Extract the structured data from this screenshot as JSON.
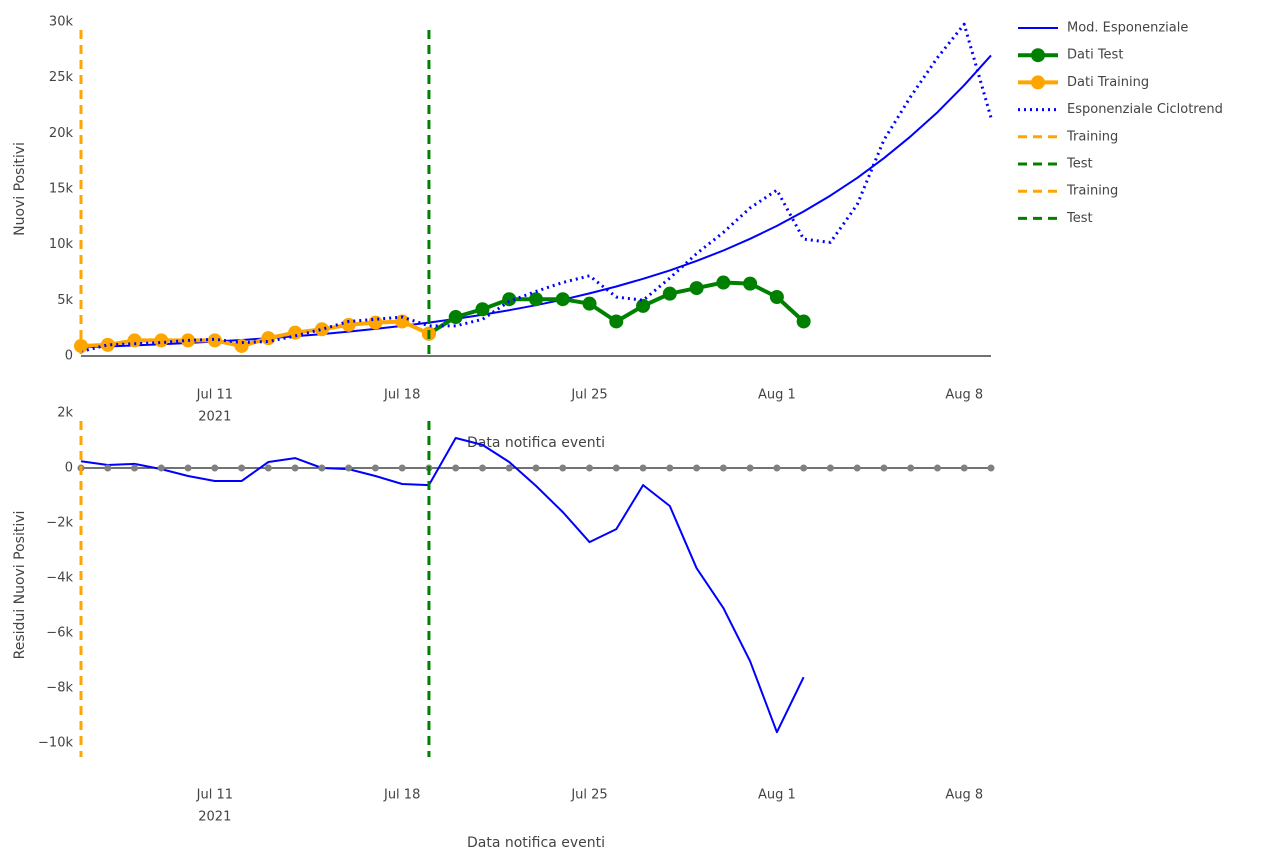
{
  "chart_data": [
    {
      "type": "line",
      "y_label": "Nuovi Positivi",
      "x_label": "Data notifica eventi",
      "x_year": "2021",
      "x": [
        "2021-07-06",
        "2021-07-07",
        "2021-07-08",
        "2021-07-09",
        "2021-07-10",
        "2021-07-11",
        "2021-07-12",
        "2021-07-13",
        "2021-07-14",
        "2021-07-15",
        "2021-07-16",
        "2021-07-17",
        "2021-07-18",
        "2021-07-19",
        "2021-07-20",
        "2021-07-21",
        "2021-07-22",
        "2021-07-23",
        "2021-07-24",
        "2021-07-25",
        "2021-07-26",
        "2021-07-27",
        "2021-07-28",
        "2021-07-29",
        "2021-07-30",
        "2021-07-31",
        "2021-08-01",
        "2021-08-02",
        "2021-08-03",
        "2021-08-04",
        "2021-08-05",
        "2021-08-06",
        "2021-08-07",
        "2021-08-08",
        "2021-08-09"
      ],
      "xlim": [
        "2021-07-06",
        "2021-08-09"
      ],
      "xticks": [
        {
          "value": "2021-07-11",
          "label": "Jul 11"
        },
        {
          "value": "2021-07-18",
          "label": "Jul 18"
        },
        {
          "value": "2021-07-25",
          "label": "Jul 25"
        },
        {
          "value": "2021-08-01",
          "label": "Aug 1"
        },
        {
          "value": "2021-08-08",
          "label": "Aug 8"
        }
      ],
      "ylim": [
        0,
        30000
      ],
      "yticks": [
        0,
        {
          "value": 5000,
          "label": "5k"
        },
        {
          "value": 10000,
          "label": "10k"
        },
        {
          "value": 15000,
          "label": "15k"
        },
        {
          "value": 20000,
          "label": "20k"
        },
        {
          "value": 25000,
          "label": "25k"
        },
        {
          "value": 30000,
          "label": "30k"
        }
      ],
      "series": [
        {
          "name": "Mod. Esponenziale",
          "color": "#0000ff",
          "dash": "solid",
          "width": 2,
          "markers": false,
          "values": [
            770,
            850,
            950,
            1050,
            1170,
            1300,
            1440,
            1600,
            1780,
            1970,
            2190,
            2430,
            2700,
            3000,
            3330,
            3700,
            4110,
            4560,
            5060,
            5620,
            6240,
            6930,
            7690,
            8540,
            9480,
            10530,
            11690,
            12980,
            14410,
            16000,
            17770,
            19730,
            21900,
            24320,
            27000
          ]
        },
        {
          "name": "Dati Test",
          "color": "#008000",
          "dash": "solid",
          "width": 4,
          "markers": true,
          "values": [
            null,
            null,
            null,
            null,
            null,
            null,
            null,
            null,
            null,
            null,
            null,
            null,
            null,
            2000,
            3500,
            4200,
            5100,
            5100,
            5100,
            4700,
            3100,
            4500,
            5600,
            6100,
            6600,
            6500,
            5300,
            3100,
            null,
            null,
            null,
            null,
            null,
            null,
            null
          ]
        },
        {
          "name": "Dati Training",
          "color": "#ffa500",
          "dash": "solid",
          "width": 4,
          "markers": true,
          "values": [
            900,
            1000,
            1400,
            1400,
            1400,
            1400,
            900,
            1600,
            2100,
            2400,
            2800,
            3000,
            3100,
            2000,
            null,
            null,
            null,
            null,
            null,
            null,
            null,
            null,
            null,
            null,
            null,
            null,
            null,
            null,
            null,
            null,
            null,
            null,
            null,
            null,
            null
          ]
        },
        {
          "name": "Esponenziale Ciclotrend",
          "color": "#0000ff",
          "dash": "dot",
          "width": 3,
          "markers": false,
          "values": [
            400,
            1000,
            1100,
            1200,
            1400,
            1500,
            1200,
            1300,
            1800,
            2400,
            3100,
            3300,
            3500,
            2700,
            2700,
            3300,
            4900,
            5800,
            6600,
            7200,
            5300,
            5000,
            7000,
            9200,
            11100,
            13300,
            14900,
            10500,
            10200,
            13600,
            19400,
            23300,
            26800,
            29800,
            21400
          ]
        }
      ],
      "vlines": [
        {
          "name": "Training",
          "color": "#ffa500",
          "x": "2021-07-06"
        },
        {
          "name": "Test",
          "color": "#008000",
          "x": "2021-07-19"
        }
      ]
    },
    {
      "type": "line",
      "y_label": "Residui Nuovi Positivi",
      "x_label": "Data notifica eventi",
      "x_year": "2021",
      "x": [
        "2021-07-06",
        "2021-07-07",
        "2021-07-08",
        "2021-07-09",
        "2021-07-10",
        "2021-07-11",
        "2021-07-12",
        "2021-07-13",
        "2021-07-14",
        "2021-07-15",
        "2021-07-16",
        "2021-07-17",
        "2021-07-18",
        "2021-07-19",
        "2021-07-20",
        "2021-07-21",
        "2021-07-22",
        "2021-07-23",
        "2021-07-24",
        "2021-07-25",
        "2021-07-26",
        "2021-07-27",
        "2021-07-28",
        "2021-07-29",
        "2021-07-30",
        "2021-07-31",
        "2021-08-01",
        "2021-08-02",
        "2021-08-03",
        "2021-08-04",
        "2021-08-05",
        "2021-08-06",
        "2021-08-07",
        "2021-08-08",
        "2021-08-09"
      ],
      "xlim": [
        "2021-07-06",
        "2021-08-09"
      ],
      "xticks": [
        {
          "value": "2021-07-11",
          "label": "Jul 11"
        },
        {
          "value": "2021-07-18",
          "label": "Jul 18"
        },
        {
          "value": "2021-07-25",
          "label": "Jul 25"
        },
        {
          "value": "2021-08-01",
          "label": "Aug 1"
        },
        {
          "value": "2021-08-08",
          "label": "Aug 8"
        }
      ],
      "ylim": [
        -10500,
        2000
      ],
      "yticks": [
        {
          "value": -10000,
          "label": "−10k"
        },
        {
          "value": -8000,
          "label": "−8k"
        },
        {
          "value": -6000,
          "label": "−6k"
        },
        {
          "value": -4000,
          "label": "−4k"
        },
        {
          "value": -2000,
          "label": "−2k"
        },
        0,
        {
          "value": 2000,
          "label": "2k"
        }
      ],
      "series": [
        {
          "color": "#0000ff",
          "dash": "solid",
          "width": 2,
          "markers": false,
          "values": [
            250,
            110,
            150,
            -40,
            -290,
            -470,
            -470,
            220,
            360,
            0,
            -40,
            -290,
            -580,
            -620,
            1090,
            840,
            220,
            -650,
            -1600,
            -2690,
            -2220,
            -620,
            -1380,
            -3640,
            -5090,
            -7020,
            -9600,
            -7600,
            null,
            null,
            null,
            null,
            null,
            null,
            null
          ]
        },
        {
          "color": "#808080",
          "dash": "none",
          "width": 0,
          "markers": true,
          "values": [
            0,
            0,
            0,
            0,
            0,
            0,
            0,
            0,
            0,
            0,
            0,
            0,
            0,
            0,
            0,
            0,
            0,
            0,
            0,
            0,
            0,
            0,
            0,
            0,
            0,
            0,
            0,
            0,
            0,
            0,
            0,
            0,
            0,
            0,
            0
          ]
        }
      ],
      "vlines": [
        {
          "name": "Training",
          "color": "#ffa500",
          "x": "2021-07-06"
        },
        {
          "name": "Test",
          "color": "#008000",
          "x": "2021-07-19"
        }
      ]
    }
  ]
}
